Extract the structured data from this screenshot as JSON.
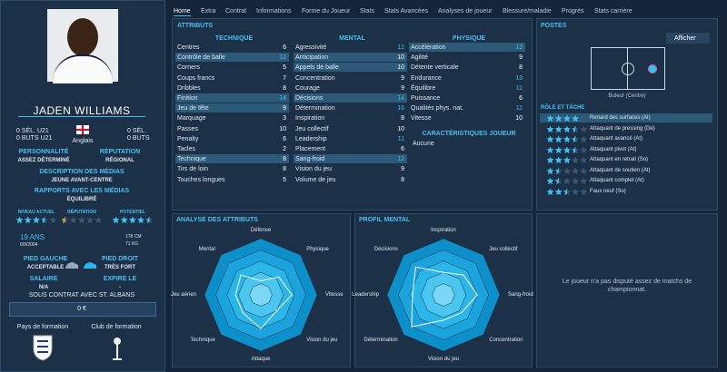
{
  "player": {
    "name": "JADEN WILLIAMS",
    "caps_u21": "0 SÉL. U21",
    "goals_u21": "0 BUTS U21",
    "caps": "0 SÉL.",
    "goals": "0 BUTS",
    "nationality": "Anglais",
    "personality_label": "PERSONNALITÉ",
    "personality": "ASSEZ DÉTERMINÉ",
    "reputation_label": "RÉPUTATION",
    "reputation": "RÉGIONAL",
    "media_desc_label": "DESCRIPTION DES MÉDIAS",
    "media_desc": "JEUNE AVANT-CENTRE",
    "media_rel_label": "RAPPORTS AVEC LES MÉDIAS",
    "media_rel": "ÉQUILIBRÉ",
    "ratings": [
      {
        "label": "NIVEAU ACTUEL",
        "stars": 3.5
      },
      {
        "label": "RÉPUTATION",
        "stars": 0.5
      },
      {
        "label": "POTENTIEL",
        "stars": 4.5
      }
    ],
    "age": "19 ANS",
    "dob": "6/9/2004",
    "height": "178 CM",
    "weight": "71 KG",
    "left_foot_label": "PIED GAUCHE",
    "left_foot": "ACCEPTABLE",
    "right_foot_label": "PIED DROIT",
    "right_foot": "TRÈS FORT",
    "wage_label": "SALAIRE",
    "wage": "N/A",
    "expiry_label": "EXPIRE LE",
    "expiry": "-",
    "contract": "SOUS CONTRAT AVEC ST. ALBANS",
    "value": "0 €",
    "trained_nation": "Pays de formation",
    "trained_club": "Club de formation"
  },
  "tabs": [
    "Home",
    "Extra",
    "Contrat",
    "Informations",
    "Forme du Joueur",
    "Stats",
    "Stats Avancées",
    "Analyses de joueur",
    "Blessure/maladie",
    "Progrès",
    "Stats carrière"
  ],
  "attributes": {
    "title": "ATTRIBUTS",
    "columns": [
      {
        "title": "TECHNIQUE",
        "items": [
          {
            "name": "Centres",
            "value": 6
          },
          {
            "name": "Contrôle de balle",
            "value": 12,
            "highlight": true
          },
          {
            "name": "Corners",
            "value": 5
          },
          {
            "name": "Coups francs",
            "value": 7
          },
          {
            "name": "Dribbles",
            "value": 8
          },
          {
            "name": "Finition",
            "value": 14,
            "highlight": true
          },
          {
            "name": "Jeu de tête",
            "value": 9,
            "highlight": true
          },
          {
            "name": "Marquage",
            "value": 3
          },
          {
            "name": "Passes",
            "value": 10
          },
          {
            "name": "Penalty",
            "value": 6
          },
          {
            "name": "Tacles",
            "value": 2
          },
          {
            "name": "Technique",
            "value": 8,
            "highlight": true
          },
          {
            "name": "Tirs de loin",
            "value": 8
          },
          {
            "name": "Touches longues",
            "value": 5
          }
        ]
      },
      {
        "title": "MENTAL",
        "items": [
          {
            "name": "Agressivité",
            "value": 12
          },
          {
            "name": "Anticipation",
            "value": 10,
            "highlight": true
          },
          {
            "name": "Appels de balle",
            "value": 10,
            "highlight": true
          },
          {
            "name": "Concentration",
            "value": 9
          },
          {
            "name": "Courage",
            "value": 9
          },
          {
            "name": "Décisions",
            "value": 14,
            "highlight": true
          },
          {
            "name": "Détermination",
            "value": 16
          },
          {
            "name": "Inspiration",
            "value": 8
          },
          {
            "name": "Jeu collectif",
            "value": 10
          },
          {
            "name": "Leadership",
            "value": 11
          },
          {
            "name": "Placement",
            "value": 6
          },
          {
            "name": "Sang-froid",
            "value": 12,
            "highlight": true
          },
          {
            "name": "Vision du jeu",
            "value": 9
          },
          {
            "name": "Volume de jeu",
            "value": 8
          }
        ]
      },
      {
        "title": "PHYSIQUE",
        "items": [
          {
            "name": "Accélération",
            "value": 13,
            "highlight": true
          },
          {
            "name": "Agilité",
            "value": 9
          },
          {
            "name": "Détente verticale",
            "value": 8
          },
          {
            "name": "Endurance",
            "value": 13
          },
          {
            "name": "Équilibre",
            "value": 11
          },
          {
            "name": "Puissance",
            "value": 6
          },
          {
            "name": "Qualités phys. nat.",
            "value": 11
          },
          {
            "name": "Vitesse",
            "value": 10
          }
        ]
      }
    ],
    "traits_title": "CARACTÉRISTIQUES JOUEUR",
    "traits": "Aucune"
  },
  "positions": {
    "title": "POSTES",
    "button": "Afficher",
    "position": "Buteur (Centre)",
    "roles_title": "RÔLE ET TÂCHE",
    "roles": [
      {
        "name": "Renard des surfaces (At)",
        "stars": 4
      },
      {
        "name": "Attaquant de pressing (Dé)",
        "stars": 3.5
      },
      {
        "name": "Attaquant avancé (At)",
        "stars": 3.5
      },
      {
        "name": "Attaquant pivot (At)",
        "stars": 3.5
      },
      {
        "name": "Attaquant en retrait (So)",
        "stars": 3
      },
      {
        "name": "Attaquant de soutien (At)",
        "stars": 1.5
      },
      {
        "name": "Attaquant complet (At)",
        "stars": 1.5
      },
      {
        "name": "Faux neuf (So)",
        "stars": 2.5
      }
    ]
  },
  "radars": [
    {
      "title": "ANALYSE DES ATTRIBUTS",
      "max": 20,
      "axes": [
        "Défense",
        "Physique",
        "Vitesse",
        "Vision du jeu",
        "Attaque",
        "Technique",
        "Jeu aérien",
        "Mental"
      ],
      "values": [
        5,
        9,
        11,
        8,
        12,
        9,
        9,
        10
      ]
    },
    {
      "title": "PROFIL MENTAL",
      "max": 20,
      "axes": [
        "Inspiration",
        "Jeu collectif",
        "Sang-froid",
        "Concentration",
        "Vision du jeu",
        "Détermination",
        "Leadership",
        "Décisions"
      ],
      "values": [
        8,
        10,
        12,
        9,
        9,
        16,
        11,
        14
      ]
    }
  ],
  "stats_note": "Le joueur n'a pas disputé assez de matchs de championnat."
}
